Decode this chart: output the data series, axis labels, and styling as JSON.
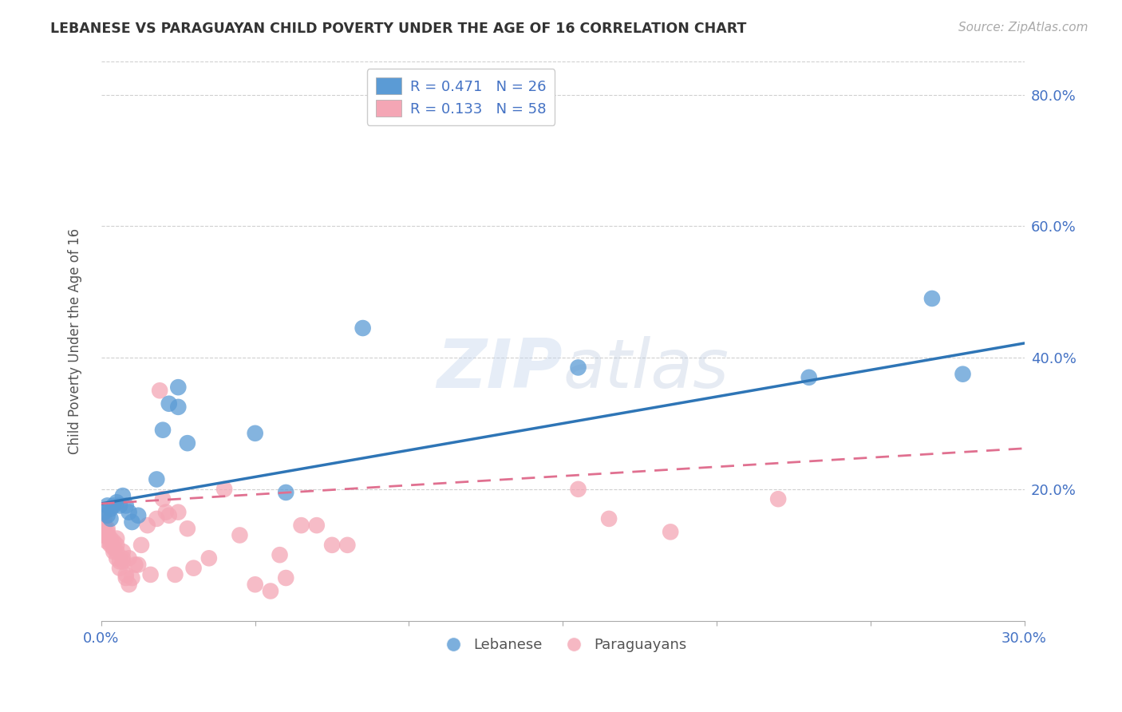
{
  "title": "LEBANESE VS PARAGUAYAN CHILD POVERTY UNDER THE AGE OF 16 CORRELATION CHART",
  "source": "Source: ZipAtlas.com",
  "ylabel_label": "Child Poverty Under the Age of 16",
  "xlim": [
    0.0,
    0.3
  ],
  "ylim": [
    0.0,
    0.85
  ],
  "x_ticks": [
    0.0,
    0.05,
    0.1,
    0.15,
    0.2,
    0.25,
    0.3
  ],
  "x_tick_labels": [
    "0.0%",
    "",
    "",
    "",
    "",
    "",
    "30.0%"
  ],
  "y_ticks": [
    0.0,
    0.2,
    0.4,
    0.6,
    0.8
  ],
  "y_tick_labels": [
    "",
    "20.0%",
    "40.0%",
    "60.0%",
    "80.0%"
  ],
  "legend_R1": "R = 0.471",
  "legend_N1": "N = 26",
  "legend_R2": "R = 0.133",
  "legend_N2": "N = 58",
  "blue_color": "#5b9bd5",
  "pink_color": "#f4a6b5",
  "pink_line_color": "#e07090",
  "blue_line_color": "#2e75b6",
  "axis_color": "#4472c4",
  "lebanese_x": [
    0.001,
    0.002,
    0.002,
    0.003,
    0.003,
    0.004,
    0.005,
    0.006,
    0.007,
    0.008,
    0.009,
    0.01,
    0.012,
    0.018,
    0.02,
    0.022,
    0.025,
    0.025,
    0.028,
    0.05,
    0.06,
    0.085,
    0.155,
    0.23,
    0.27,
    0.28
  ],
  "lebanese_y": [
    0.165,
    0.175,
    0.16,
    0.155,
    0.17,
    0.175,
    0.18,
    0.175,
    0.19,
    0.175,
    0.165,
    0.15,
    0.16,
    0.215,
    0.29,
    0.33,
    0.325,
    0.355,
    0.27,
    0.285,
    0.195,
    0.445,
    0.385,
    0.37,
    0.49,
    0.375
  ],
  "paraguayan_x": [
    0.0,
    0.001,
    0.001,
    0.001,
    0.001,
    0.002,
    0.002,
    0.002,
    0.002,
    0.003,
    0.003,
    0.003,
    0.004,
    0.004,
    0.004,
    0.005,
    0.005,
    0.005,
    0.005,
    0.006,
    0.006,
    0.007,
    0.007,
    0.007,
    0.008,
    0.008,
    0.009,
    0.009,
    0.01,
    0.011,
    0.012,
    0.013,
    0.015,
    0.016,
    0.018,
    0.019,
    0.02,
    0.021,
    0.022,
    0.024,
    0.025,
    0.028,
    0.03,
    0.035,
    0.04,
    0.045,
    0.05,
    0.055,
    0.058,
    0.06,
    0.065,
    0.07,
    0.075,
    0.08,
    0.155,
    0.165,
    0.185,
    0.22
  ],
  "paraguayan_y": [
    0.13,
    0.13,
    0.14,
    0.145,
    0.155,
    0.12,
    0.13,
    0.135,
    0.14,
    0.115,
    0.12,
    0.125,
    0.105,
    0.11,
    0.12,
    0.095,
    0.105,
    0.115,
    0.125,
    0.08,
    0.09,
    0.09,
    0.095,
    0.105,
    0.065,
    0.07,
    0.055,
    0.095,
    0.065,
    0.085,
    0.085,
    0.115,
    0.145,
    0.07,
    0.155,
    0.35,
    0.185,
    0.165,
    0.16,
    0.07,
    0.165,
    0.14,
    0.08,
    0.095,
    0.2,
    0.13,
    0.055,
    0.045,
    0.1,
    0.065,
    0.145,
    0.145,
    0.115,
    0.115,
    0.2,
    0.155,
    0.135,
    0.185
  ],
  "blue_trend_x": [
    0.0,
    0.3
  ],
  "blue_trend_y": [
    0.178,
    0.422
  ],
  "pink_trend_x": [
    0.0,
    0.3
  ],
  "pink_trend_y": [
    0.178,
    0.262
  ]
}
